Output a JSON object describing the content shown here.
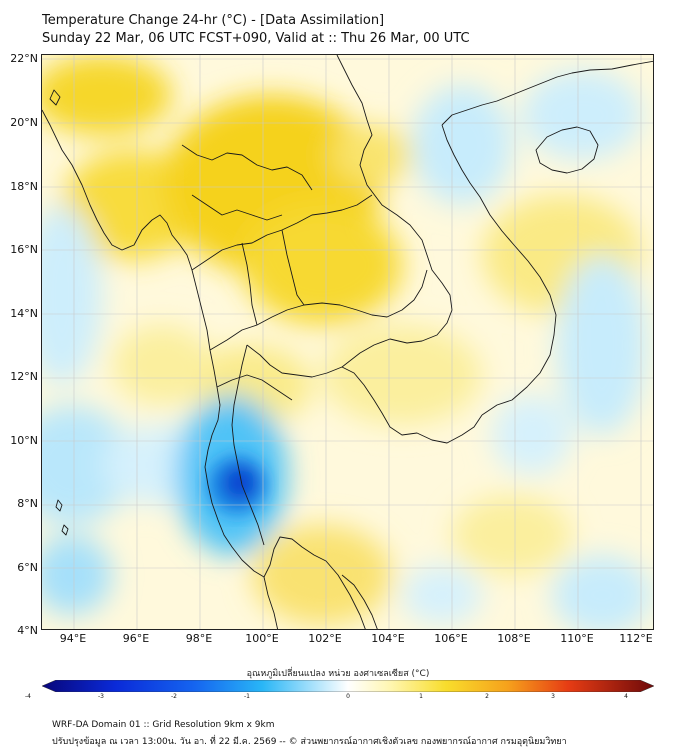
{
  "title": {
    "line1": "Temperature Change 24-hr (°C) - [Data Assimilation]",
    "line2": "Sunday 22 Mar, 06 UTC FCST+090, Valid at :: Thu 26 Mar, 00 UTC"
  },
  "map": {
    "y_ticks": [
      "22°N",
      "20°N",
      "18°N",
      "16°N",
      "14°N",
      "12°N",
      "10°N",
      "8°N",
      "6°N",
      "4°N"
    ],
    "x_ticks": [
      "94°E",
      "96°E",
      "98°E",
      "100°E",
      "102°E",
      "104°E",
      "106°E",
      "108°E",
      "110°E",
      "112°E"
    ],
    "colors": {
      "land_border": "#1a1a1a",
      "neutral": "#ffffff",
      "warm": "#f5d400",
      "cool": "#29b6f6",
      "cold_core": "#0a3fd6"
    }
  },
  "colorbar": {
    "label": "อุณหภูมิเปลี่ยนแปลง หน่วย องศาเซลเซียส (°C)",
    "ticks": [
      "-4",
      "-3",
      "-2",
      "-1",
      "0",
      "1",
      "2",
      "3",
      "4"
    ]
  },
  "footer": {
    "line1": "WRF-DA Domain 01 :: Grid Resolution 9km x 9km",
    "line2": "ปรับปรุงข้อมูล ณ เวลา 13:00น. วัน อา. ที่ 22 มี.ค. 2569 -- © ส่วนพยากรณ์อากาศเชิงตัวเลข กองพยากรณ์อากาศ กรมอุตุนิยมวิทยา"
  }
}
